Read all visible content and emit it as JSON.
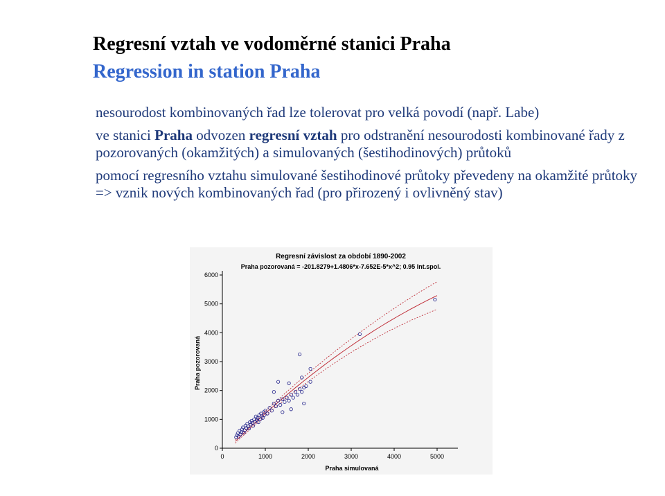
{
  "slide": {
    "title_cz": "Regresní vztah ve vodoměrné stanici Praha",
    "title_en": "Regression in station Praha",
    "p1": "nesourodost kombinovaných řad lze tolerovat pro velká povodí (např. Labe)",
    "p2": {
      "s1": "ve stanici ",
      "b1": "Praha",
      "s2": " odvozen ",
      "b2": "regresní vztah",
      "s3": " pro odstranění nesourodosti kombinované řady z pozorovaných (okamžitých) a simulovaných (šestihodinových) průtoků"
    },
    "p3": "pomocí regresního vztahu simulované šestihodinové průtoky převedeny na okamžité průtoky  =>  vznik nových kombinovaných řad (pro přirozený i ovlivněný stav)"
  },
  "colors": {
    "title_en": "#3366cc",
    "body": "#1f3a7a",
    "points": "#20208a",
    "fit_line": "#c0303a",
    "band": "#c0303a"
  },
  "chart_data": {
    "type": "scatter",
    "title": "Regresní závislost za období 1890-2002",
    "subtitle": "Praha pozorovaná = -201.8279+1.4806*x-7.652E-5*x^2; 0.95 Int.spol.",
    "xlabel": "Praha simulovaná",
    "ylabel": "Praha pozorovaná",
    "xlim": [
      0,
      5000
    ],
    "ylim": [
      0,
      6000
    ],
    "xticks": [
      "0",
      "1000",
      "2000",
      "3000",
      "4000",
      "5000"
    ],
    "yticks": [
      "0",
      "1000",
      "2000",
      "3000",
      "4000",
      "5000",
      "6000"
    ],
    "grid": false,
    "fit": {
      "a": -201.8279,
      "b": 1.4806,
      "c": -7.652e-05,
      "x_range": [
        300,
        5000
      ]
    },
    "band_halfwidth": {
      "start": 60,
      "end": 480
    },
    "points": [
      [
        320,
        380
      ],
      [
        340,
        450
      ],
      [
        360,
        520
      ],
      [
        380,
        400
      ],
      [
        400,
        600
      ],
      [
        420,
        480
      ],
      [
        440,
        560
      ],
      [
        460,
        650
      ],
      [
        480,
        720
      ],
      [
        500,
        540
      ],
      [
        520,
        620
      ],
      [
        540,
        780
      ],
      [
        560,
        700
      ],
      [
        580,
        850
      ],
      [
        600,
        760
      ],
      [
        620,
        680
      ],
      [
        640,
        900
      ],
      [
        660,
        820
      ],
      [
        680,
        950
      ],
      [
        700,
        880
      ],
      [
        720,
        780
      ],
      [
        740,
        1000
      ],
      [
        760,
        920
      ],
      [
        780,
        1100
      ],
      [
        800,
        980
      ],
      [
        820,
        1050
      ],
      [
        840,
        900
      ],
      [
        860,
        1150
      ],
      [
        880,
        1000
      ],
      [
        900,
        1200
      ],
      [
        920,
        1100
      ],
      [
        940,
        1050
      ],
      [
        960,
        1250
      ],
      [
        980,
        1150
      ],
      [
        1000,
        1300
      ],
      [
        1050,
        1200
      ],
      [
        1100,
        1400
      ],
      [
        1150,
        1300
      ],
      [
        1200,
        1550
      ],
      [
        1250,
        1450
      ],
      [
        1300,
        1650
      ],
      [
        1350,
        1500
      ],
      [
        1400,
        1700
      ],
      [
        1450,
        1600
      ],
      [
        1500,
        1750
      ],
      [
        1550,
        1650
      ],
      [
        1600,
        1850
      ],
      [
        1650,
        1750
      ],
      [
        1700,
        1950
      ],
      [
        1750,
        1850
      ],
      [
        1800,
        2050
      ],
      [
        1850,
        1950
      ],
      [
        1900,
        2100
      ],
      [
        1400,
        1250
      ],
      [
        1600,
        1350
      ],
      [
        1200,
        1950
      ],
      [
        1300,
        2300
      ],
      [
        1550,
        2250
      ],
      [
        1800,
        3250
      ],
      [
        1850,
        2450
      ],
      [
        2050,
        2750
      ],
      [
        2050,
        2300
      ],
      [
        1900,
        1550
      ],
      [
        1950,
        2150
      ],
      [
        3200,
        3950
      ],
      [
        4950,
        5150
      ]
    ]
  }
}
